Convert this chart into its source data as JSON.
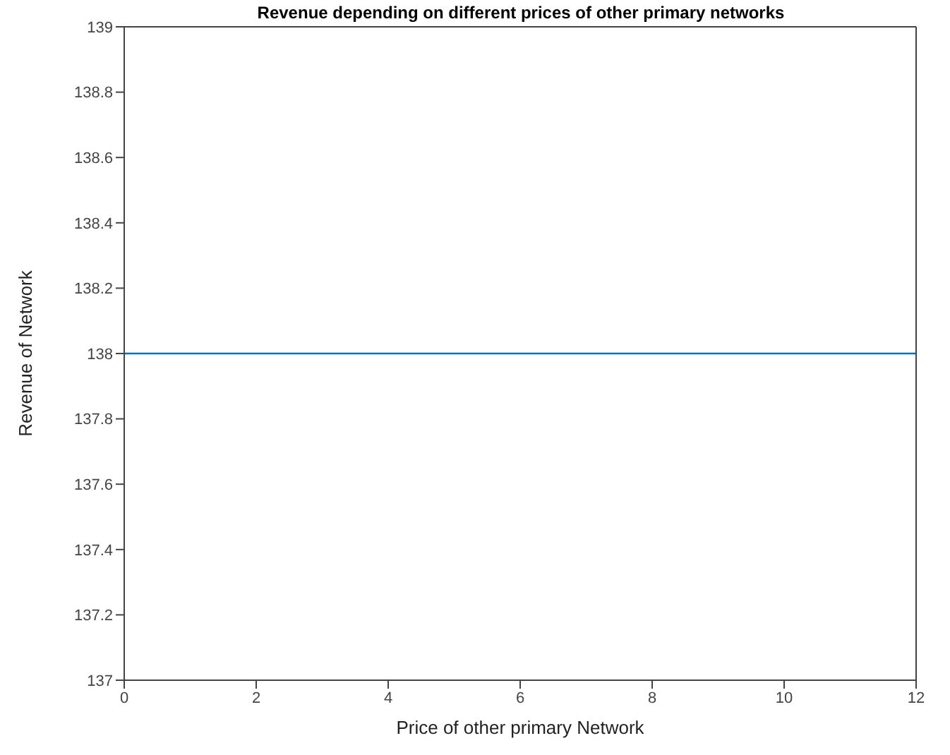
{
  "chart_data": {
    "type": "line",
    "title": "Revenue depending on different prices of other primary networks",
    "xlabel": "Price of other primary Network",
    "ylabel": "Revenue of Network",
    "x": [
      0,
      12
    ],
    "series": [
      {
        "color": "#0072bd",
        "values": [
          138,
          138
        ]
      }
    ],
    "xlim": [
      0,
      12
    ],
    "xticks": [
      0,
      2,
      4,
      6,
      8,
      10,
      12
    ],
    "ylim": [
      137,
      139
    ],
    "yticks": [
      137,
      137.2,
      137.4,
      137.6,
      137.8,
      138,
      138.2,
      138.4,
      138.6,
      138.8,
      139
    ],
    "marker": "none",
    "line_style": "solid"
  }
}
